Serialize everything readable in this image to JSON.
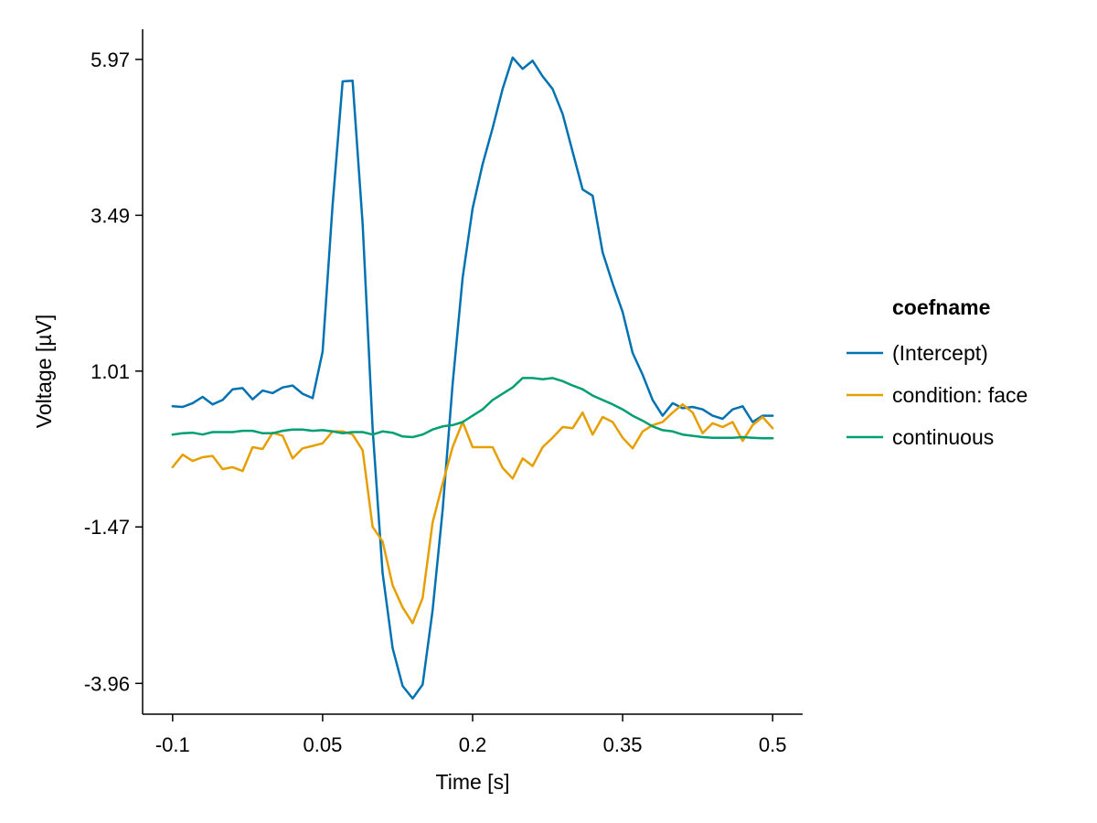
{
  "chart_data": {
    "type": "line",
    "title": "",
    "xlabel": "Time [s]",
    "ylabel": "Voltage [µV]",
    "xlim": [
      -0.13,
      0.53
    ],
    "ylim": [
      -4.45,
      6.45
    ],
    "xticks": [
      -0.1,
      0.05,
      0.2,
      0.35,
      0.5
    ],
    "xtick_labels": [
      "-0.1",
      "0.05",
      "0.2",
      "0.35",
      "0.5"
    ],
    "yticks": [
      -3.96,
      -1.47,
      1.01,
      3.49,
      5.97
    ],
    "ytick_labels": [
      "-3.96",
      "-1.47",
      "1.01",
      "3.49",
      "5.97"
    ],
    "grid": false,
    "legend": {
      "title": "coefname",
      "position": "right"
    },
    "x": [
      -0.1,
      -0.09,
      -0.08,
      -0.07,
      -0.06,
      -0.05,
      -0.04,
      -0.03,
      -0.02,
      -0.01,
      0.0,
      0.01,
      0.02,
      0.03,
      0.04,
      0.05,
      0.06,
      0.07,
      0.08,
      0.09,
      0.1,
      0.11,
      0.12,
      0.13,
      0.14,
      0.15,
      0.16,
      0.17,
      0.18,
      0.19,
      0.2,
      0.21,
      0.22,
      0.23,
      0.24,
      0.25,
      0.26,
      0.27,
      0.28,
      0.29,
      0.3,
      0.31,
      0.32,
      0.33,
      0.34,
      0.35,
      0.36,
      0.37,
      0.38,
      0.39,
      0.4,
      0.41,
      0.42,
      0.43,
      0.44,
      0.45,
      0.46,
      0.47,
      0.48,
      0.49,
      0.5
    ],
    "series": [
      {
        "name": "(Intercept)",
        "color": "#0072B2",
        "values": [
          0.45,
          0.44,
          0.5,
          0.6,
          0.48,
          0.55,
          0.72,
          0.74,
          0.56,
          0.7,
          0.66,
          0.75,
          0.78,
          0.65,
          0.58,
          1.32,
          3.65,
          5.62,
          5.63,
          3.35,
          0.1,
          -2.2,
          -3.4,
          -4.0,
          -4.2,
          -3.98,
          -2.8,
          -1.2,
          0.8,
          2.5,
          3.6,
          4.3,
          4.88,
          5.5,
          6.0,
          5.82,
          5.95,
          5.7,
          5.5,
          5.1,
          4.5,
          3.9,
          3.8,
          2.9,
          2.4,
          1.95,
          1.3,
          0.95,
          0.55,
          0.3,
          0.5,
          0.42,
          0.44,
          0.4,
          0.3,
          0.25,
          0.4,
          0.45,
          0.2,
          0.3,
          0.3
        ]
      },
      {
        "name": "condition: face",
        "color": "#E69F00",
        "values": [
          -0.52,
          -0.32,
          -0.42,
          -0.36,
          -0.34,
          -0.55,
          -0.52,
          -0.58,
          -0.2,
          -0.23,
          0.03,
          -0.02,
          -0.38,
          -0.22,
          -0.18,
          -0.14,
          0.05,
          0.05,
          0.0,
          -0.25,
          -1.47,
          -1.7,
          -2.4,
          -2.75,
          -3.0,
          -2.6,
          -1.4,
          -0.78,
          -0.2,
          0.2,
          -0.2,
          -0.2,
          -0.2,
          -0.53,
          -0.7,
          -0.38,
          -0.5,
          -0.2,
          -0.05,
          0.12,
          0.1,
          0.35,
          0.0,
          0.28,
          0.2,
          -0.05,
          -0.22,
          0.05,
          0.15,
          0.2,
          0.35,
          0.48,
          0.35,
          0.02,
          0.18,
          0.12,
          0.2,
          -0.1,
          0.15,
          0.28,
          0.1
        ]
      },
      {
        "name": "continuous",
        "color": "#009E73",
        "values": [
          0.0,
          0.02,
          0.03,
          0.0,
          0.04,
          0.04,
          0.04,
          0.06,
          0.06,
          0.02,
          0.02,
          0.06,
          0.08,
          0.08,
          0.06,
          0.07,
          0.05,
          0.02,
          0.04,
          0.04,
          0.0,
          0.05,
          0.03,
          -0.03,
          -0.04,
          0.0,
          0.08,
          0.13,
          0.15,
          0.2,
          0.3,
          0.4,
          0.55,
          0.65,
          0.75,
          0.9,
          0.9,
          0.88,
          0.9,
          0.85,
          0.78,
          0.72,
          0.62,
          0.55,
          0.48,
          0.4,
          0.3,
          0.22,
          0.13,
          0.07,
          0.05,
          0.0,
          -0.02,
          -0.04,
          -0.05,
          -0.05,
          -0.05,
          -0.04,
          -0.05,
          -0.06,
          -0.06
        ]
      }
    ]
  }
}
